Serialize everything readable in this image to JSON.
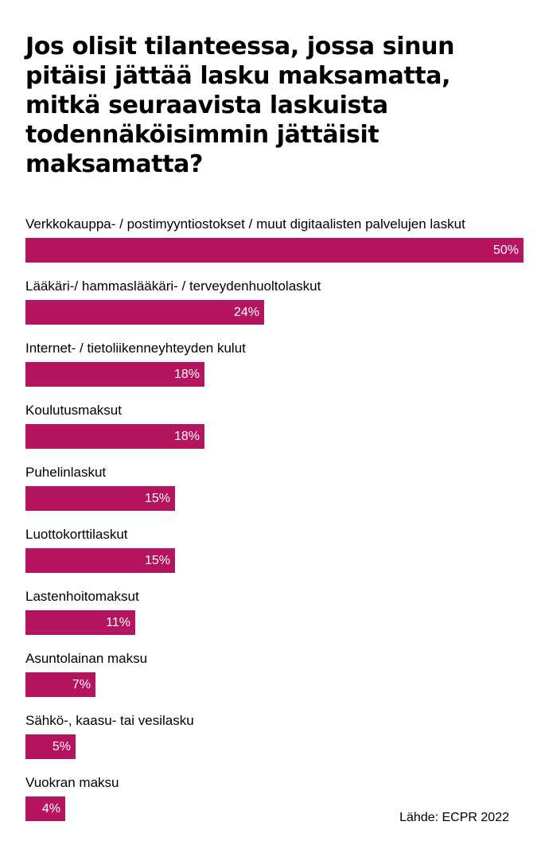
{
  "chart_data": {
    "type": "bar",
    "orientation": "horizontal",
    "title": "Jos olisit tilanteessa, jossa sinun\npitäisi jättää lasku maksamatta,\nmitkä seuraavista laskuista\ntodennäköisimmin jättäisit\nmaksamatta?",
    "categories": [
      "Verkkokauppa- / postimyyntiostokset / muut digitaalisten palvelujen laskut",
      "Lääkäri-/ hammaslääkäri- / terveydenhuoltolaskut",
      "Internet- / tietoliikenneyhteyden kulut",
      "Koulutusmaksut",
      "Puhelinlaskut",
      "Luottokorttilaskut",
      "Lastenhoitomaksut",
      "Asuntolainan maksu",
      "Sähkö-, kaasu- tai vesilasku",
      "Vuokran maksu"
    ],
    "values": [
      50,
      24,
      18,
      18,
      15,
      15,
      11,
      7,
      5,
      4
    ],
    "value_labels": [
      "50%",
      "24%",
      "18%",
      "18%",
      "15%",
      "15%",
      "11%",
      "7%",
      "5%",
      "4%"
    ],
    "xlim": [
      0,
      50
    ],
    "bar_color": "#b5145f",
    "grid": false,
    "source": "Lähde: ECPR 2022"
  }
}
